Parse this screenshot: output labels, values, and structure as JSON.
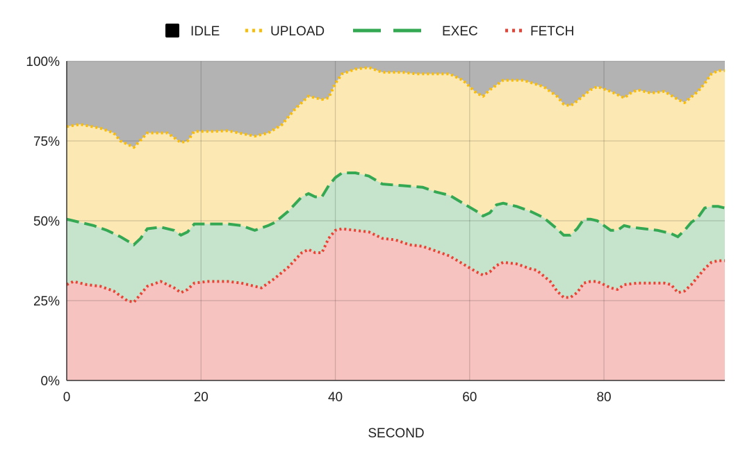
{
  "chart_data": {
    "type": "area",
    "stacked": true,
    "xlabel": "SECOND",
    "ylabel": "",
    "xlim": [
      0,
      98
    ],
    "ylim": [
      0,
      100
    ],
    "x_ticks": [
      "0",
      "20",
      "40",
      "60",
      "80"
    ],
    "y_ticks": [
      "0%",
      "25%",
      "50%",
      "75%",
      "100%"
    ],
    "grid": true,
    "legend_position": "top",
    "series": [
      {
        "name": "IDLE",
        "color": "#b3b3b3",
        "legend_color": "#000000",
        "line_style": "none",
        "points": [
          [
            0,
            100
          ],
          [
            98,
            100
          ]
        ]
      },
      {
        "name": "UPLOAD",
        "color": "#fce8b2",
        "line_color": "#fbbc04",
        "line_style": "dotted",
        "points": [
          [
            0,
            79.5
          ],
          [
            2,
            80.2
          ],
          [
            5,
            79
          ],
          [
            7,
            77.5
          ],
          [
            8,
            75
          ],
          [
            10,
            73
          ],
          [
            12,
            77.5
          ],
          [
            15,
            77.5
          ],
          [
            17,
            74.5
          ],
          [
            18,
            75
          ],
          [
            19,
            78
          ],
          [
            22,
            78
          ],
          [
            24,
            78.2
          ],
          [
            28,
            76.5
          ],
          [
            30,
            77.5
          ],
          [
            32,
            80
          ],
          [
            34,
            85
          ],
          [
            36,
            89
          ],
          [
            38,
            88
          ],
          [
            39,
            88.5
          ],
          [
            40,
            93
          ],
          [
            41,
            96
          ],
          [
            43,
            97.5
          ],
          [
            45,
            98
          ],
          [
            47,
            96.5
          ],
          [
            50,
            96.5
          ],
          [
            52,
            96
          ],
          [
            57,
            96
          ],
          [
            59,
            94
          ],
          [
            61,
            90
          ],
          [
            62,
            89
          ],
          [
            63,
            91
          ],
          [
            65,
            94
          ],
          [
            68,
            94
          ],
          [
            71,
            92
          ],
          [
            73,
            89
          ],
          [
            74,
            86.5
          ],
          [
            75,
            86
          ],
          [
            76,
            87.5
          ],
          [
            78,
            91
          ],
          [
            79,
            92
          ],
          [
            81,
            90.5
          ],
          [
            82,
            89.5
          ],
          [
            83,
            88.5
          ],
          [
            84,
            90
          ],
          [
            85,
            91
          ],
          [
            87,
            90
          ],
          [
            89,
            90.5
          ],
          [
            91,
            88
          ],
          [
            92,
            87
          ],
          [
            94,
            90.5
          ],
          [
            95,
            93
          ],
          [
            96,
            96
          ],
          [
            97,
            97
          ],
          [
            98,
            97
          ]
        ]
      },
      {
        "name": "EXEC",
        "color": "#c5e4cb",
        "line_color": "#34a853",
        "line_style": "dashed",
        "points": [
          [
            0,
            50.5
          ],
          [
            2,
            49.5
          ],
          [
            4,
            48.5
          ],
          [
            6,
            47
          ],
          [
            8,
            45
          ],
          [
            10,
            42.5
          ],
          [
            11,
            44.5
          ],
          [
            12,
            47.5
          ],
          [
            14,
            48
          ],
          [
            16,
            47
          ],
          [
            17,
            45.5
          ],
          [
            18,
            46.5
          ],
          [
            19,
            49
          ],
          [
            22,
            49
          ],
          [
            24,
            49
          ],
          [
            26,
            48.5
          ],
          [
            28,
            47
          ],
          [
            30,
            48.5
          ],
          [
            31,
            49.5
          ],
          [
            33,
            53
          ],
          [
            35,
            57.5
          ],
          [
            36,
            58.5
          ],
          [
            37,
            57.5
          ],
          [
            38,
            57.5
          ],
          [
            39,
            61
          ],
          [
            40,
            63.5
          ],
          [
            41,
            65
          ],
          [
            43,
            65
          ],
          [
            45,
            64
          ],
          [
            47,
            61.5
          ],
          [
            50,
            61
          ],
          [
            53,
            60.5
          ],
          [
            55,
            59
          ],
          [
            57,
            58
          ],
          [
            59,
            55.5
          ],
          [
            61,
            53
          ],
          [
            62,
            51.5
          ],
          [
            63,
            52.5
          ],
          [
            64,
            55
          ],
          [
            65,
            55.5
          ],
          [
            67,
            54.5
          ],
          [
            69,
            53
          ],
          [
            71,
            51
          ],
          [
            73,
            47.5
          ],
          [
            74,
            45.5
          ],
          [
            75,
            45.5
          ],
          [
            76,
            47.5
          ],
          [
            77,
            50.5
          ],
          [
            78,
            50.5
          ],
          [
            79,
            50
          ],
          [
            81,
            47
          ],
          [
            82,
            47
          ],
          [
            83,
            48.5
          ],
          [
            84,
            48
          ],
          [
            86,
            47.5
          ],
          [
            88,
            47
          ],
          [
            90,
            46
          ],
          [
            91,
            45
          ],
          [
            92,
            47
          ],
          [
            93,
            49.5
          ],
          [
            94,
            51
          ],
          [
            95,
            54
          ],
          [
            96,
            54.5
          ],
          [
            97,
            54.5
          ],
          [
            98,
            54
          ]
        ]
      },
      {
        "name": "FETCH",
        "color": "#f6c3c0",
        "line_color": "#ea4335",
        "line_style": "dotted",
        "points": [
          [
            0,
            30
          ],
          [
            1,
            31
          ],
          [
            3,
            30
          ],
          [
            5,
            29.5
          ],
          [
            7,
            28
          ],
          [
            9,
            25
          ],
          [
            10,
            24.5
          ],
          [
            11,
            27
          ],
          [
            12,
            29.5
          ],
          [
            14,
            31
          ],
          [
            16,
            29
          ],
          [
            17,
            27.5
          ],
          [
            18,
            28.5
          ],
          [
            19,
            30.5
          ],
          [
            21,
            31
          ],
          [
            24,
            31
          ],
          [
            26,
            30.5
          ],
          [
            28,
            29.5
          ],
          [
            29,
            29
          ],
          [
            31,
            32
          ],
          [
            33,
            35.5
          ],
          [
            35,
            40
          ],
          [
            36,
            41
          ],
          [
            37,
            40
          ],
          [
            38,
            40
          ],
          [
            39,
            44.5
          ],
          [
            40,
            47
          ],
          [
            41,
            47.5
          ],
          [
            43,
            47
          ],
          [
            45,
            46.5
          ],
          [
            47,
            44.5
          ],
          [
            49,
            44
          ],
          [
            51,
            42.5
          ],
          [
            53,
            42
          ],
          [
            55,
            40.5
          ],
          [
            57,
            39
          ],
          [
            59,
            36.5
          ],
          [
            61,
            34
          ],
          [
            62,
            33
          ],
          [
            63,
            34
          ],
          [
            64,
            36
          ],
          [
            65,
            37
          ],
          [
            67,
            36.5
          ],
          [
            69,
            35
          ],
          [
            70,
            34.5
          ],
          [
            72,
            31
          ],
          [
            73,
            28
          ],
          [
            74,
            26
          ],
          [
            75,
            26
          ],
          [
            76,
            27.5
          ],
          [
            77,
            30.5
          ],
          [
            78,
            31
          ],
          [
            79,
            31
          ],
          [
            80,
            30
          ],
          [
            81,
            29
          ],
          [
            82,
            28.5
          ],
          [
            83,
            30
          ],
          [
            85,
            30.5
          ],
          [
            87,
            30.5
          ],
          [
            89,
            30.5
          ],
          [
            90,
            30
          ],
          [
            91,
            27.5
          ],
          [
            92,
            28
          ],
          [
            93,
            30
          ],
          [
            94,
            32.5
          ],
          [
            95,
            35
          ],
          [
            96,
            37
          ],
          [
            97,
            37.5
          ],
          [
            98,
            37.5
          ]
        ]
      }
    ]
  }
}
